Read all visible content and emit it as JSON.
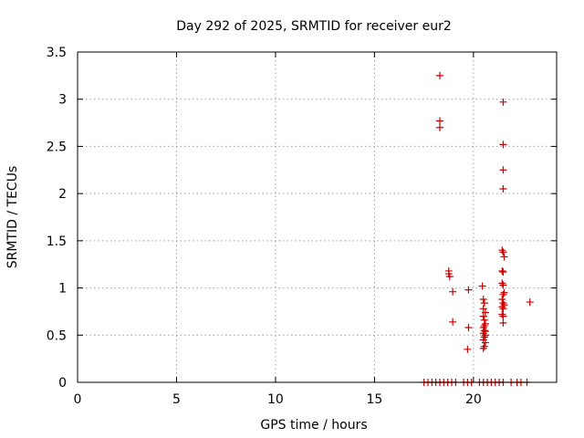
{
  "chart_data": {
    "type": "scatter",
    "title": "Day 292 of 2025, SRMTID for receiver eur2",
    "xlabel": "GPS time / hours",
    "ylabel": "SRMTID / TECUs",
    "xlim": [
      0,
      24.2
    ],
    "ylim": [
      0,
      3.5
    ],
    "xticks": [
      0,
      5,
      10,
      15,
      20
    ],
    "xtick_labels": [
      "0",
      "5",
      "10",
      "15",
      "20"
    ],
    "yticks": [
      0,
      0.5,
      1,
      1.5,
      2,
      2.5,
      3,
      3.5
    ],
    "ytick_labels": [
      "0",
      "0.5",
      "1",
      "1.5",
      "2",
      "2.5",
      "3",
      "3.5"
    ],
    "grid": true,
    "series": [
      {
        "name": "SRMTID",
        "color": "#cc0000",
        "marker": "+",
        "x": [
          18.3,
          18.3,
          18.3,
          18.75,
          18.75,
          18.8,
          18.95,
          18.95,
          19.75,
          19.75,
          19.7,
          20.45,
          20.5,
          20.55,
          20.5,
          20.6,
          20.5,
          20.55,
          20.6,
          20.5,
          20.55,
          20.5,
          20.6,
          20.55,
          20.5,
          20.6,
          20.55,
          20.5,
          20.6,
          20.55,
          21.5,
          21.5,
          21.5,
          21.5,
          21.45,
          21.5,
          21.55,
          21.45,
          21.5,
          21.45,
          21.5,
          21.5,
          21.45,
          21.5,
          21.55,
          21.45,
          21.5,
          21.45,
          21.5,
          21.5,
          21.55,
          22.85,
          17.5,
          17.7,
          17.9,
          18.1,
          18.3,
          18.5,
          18.7,
          18.9,
          19.1,
          19.5,
          19.7,
          19.9,
          20.3,
          20.5,
          20.7,
          20.9,
          21.1,
          21.3,
          21.5,
          21.9,
          22.2,
          22.4,
          22.7
        ],
        "y": [
          3.25,
          2.77,
          2.7,
          1.18,
          1.15,
          1.12,
          0.96,
          0.64,
          0.98,
          0.58,
          0.35,
          1.02,
          0.88,
          0.84,
          0.78,
          0.74,
          0.7,
          0.66,
          0.62,
          0.58,
          0.55,
          0.52,
          0.5,
          0.48,
          0.45,
          0.42,
          0.38,
          0.36,
          0.54,
          0.6,
          2.97,
          2.52,
          2.25,
          2.05,
          1.4,
          1.38,
          1.33,
          1.18,
          1.17,
          1.05,
          1.03,
          0.93,
          0.88,
          0.84,
          0.82,
          0.8,
          0.78,
          0.72,
          0.7,
          0.63,
          0.95,
          0.85,
          0,
          0,
          0,
          0,
          0,
          0,
          0,
          0,
          0,
          0,
          0,
          0,
          0,
          0,
          0,
          0,
          0,
          0,
          0,
          0,
          0,
          0,
          0
        ]
      }
    ]
  }
}
